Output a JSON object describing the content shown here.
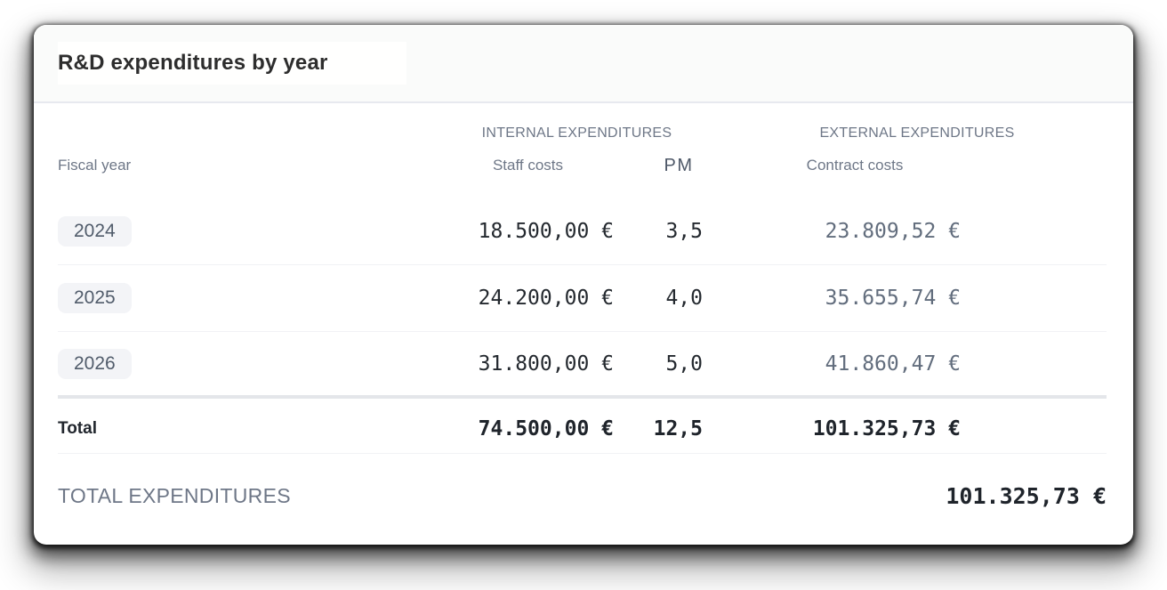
{
  "card": {
    "title": "R&D expenditures by year"
  },
  "table": {
    "group_headers": {
      "internal": "INTERNAL EXPENDITURES",
      "external": "EXTERNAL EXPENDITURES"
    },
    "columns": {
      "fiscal_year": "Fiscal year",
      "staff_costs": "Staff costs",
      "pm": "PM",
      "contract_costs": "Contract costs"
    },
    "rows": [
      {
        "year": "2024",
        "staff_costs": "18.500,00 €",
        "pm": "3,5",
        "contract_costs": "23.809,52 €"
      },
      {
        "year": "2025",
        "staff_costs": "24.200,00 €",
        "pm": "4,0",
        "contract_costs": "35.655,74 €"
      },
      {
        "year": "2026",
        "staff_costs": "31.800,00 €",
        "pm": "5,0",
        "contract_costs": "41.860,47 €"
      }
    ],
    "total_row": {
      "label": "Total",
      "staff_costs": "74.500,00 €",
      "pm": "12,5",
      "contract_costs": "101.325,73 €"
    }
  },
  "footer": {
    "label": "TOTAL EXPENDITURES",
    "value": "101.325,73 €"
  },
  "colors": {
    "card_background": "#ffffff",
    "header_background": "#fafbfa",
    "muted_text": "#6e7787",
    "dark_value_text": "#24292f",
    "gray_value_text": "#626d7d",
    "badge_background": "#f3f4f7",
    "divider": "#f1f2f5",
    "thick_divider": "#e4e6ea"
  }
}
